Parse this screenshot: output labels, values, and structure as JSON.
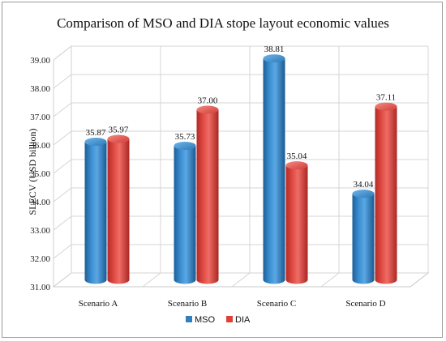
{
  "chart_data": {
    "type": "bar",
    "title": "Comparison of MSO and DIA stope layout economic values",
    "xlabel": "",
    "ylabel": "SLECV (USD billion)",
    "categories": [
      "Scenario A",
      "Scenario B",
      "Scenario C",
      "Scenario D"
    ],
    "series": [
      {
        "name": "MSO",
        "values": [
          35.87,
          35.73,
          38.81,
          34.04
        ],
        "labels": [
          "35.87",
          "35.73",
          "38.81",
          "34.04"
        ],
        "color": "#2f7fc1"
      },
      {
        "name": "DIA",
        "values": [
          35.97,
          37.0,
          35.04,
          37.11
        ],
        "labels": [
          "35.97",
          "37.00",
          "35.04",
          "37.11"
        ],
        "color": "#e0403a"
      }
    ],
    "ylim": [
      31,
      39
    ],
    "yticks": [
      "31.00",
      "32.00",
      "33.00",
      "34.00",
      "35.00",
      "36.00",
      "37.00",
      "38.00",
      "39.00"
    ],
    "grid": true,
    "legend_position": "bottom",
    "style": "3d-cylinder"
  }
}
